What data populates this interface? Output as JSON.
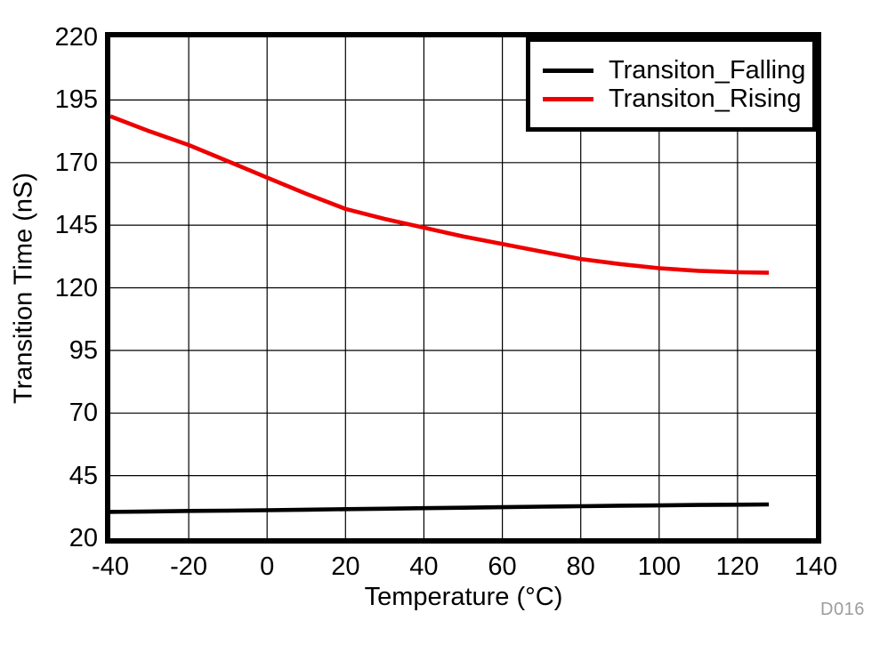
{
  "figure": {
    "watermark": "D016",
    "watermark_color": "#9c9c9c",
    "background": "#ffffff"
  },
  "chart_data": {
    "type": "line",
    "title": "",
    "xlabel": "Temperature (°C)",
    "ylabel": "Transition Time (nS)",
    "xlim": [
      -40,
      140
    ],
    "ylim": [
      20,
      220
    ],
    "x_ticks": [
      -40,
      -20,
      0,
      20,
      40,
      60,
      80,
      100,
      120,
      140
    ],
    "y_ticks": [
      20,
      45,
      70,
      95,
      120,
      145,
      170,
      195,
      220
    ],
    "grid": true,
    "grid_color": "#000000",
    "legend_position": "top-right",
    "x": [
      -40,
      -30,
      -20,
      -10,
      0,
      10,
      20,
      30,
      40,
      50,
      60,
      70,
      80,
      90,
      100,
      110,
      120,
      128
    ],
    "series": [
      {
        "name": "Transiton_Falling",
        "color": "#000000",
        "values": [
          30.5,
          30.7,
          30.9,
          31.0,
          31.2,
          31.4,
          31.6,
          31.8,
          32.0,
          32.2,
          32.4,
          32.6,
          32.8,
          33.0,
          33.1,
          33.3,
          33.4,
          33.5
        ]
      },
      {
        "name": "Transiton_Rising",
        "color": "#ee0000",
        "values": [
          188.5,
          182.5,
          177.0,
          170.5,
          164.0,
          157.5,
          151.5,
          147.5,
          144.0,
          140.5,
          137.5,
          134.5,
          131.5,
          129.5,
          127.8,
          126.8,
          126.2,
          126.0
        ]
      }
    ]
  }
}
